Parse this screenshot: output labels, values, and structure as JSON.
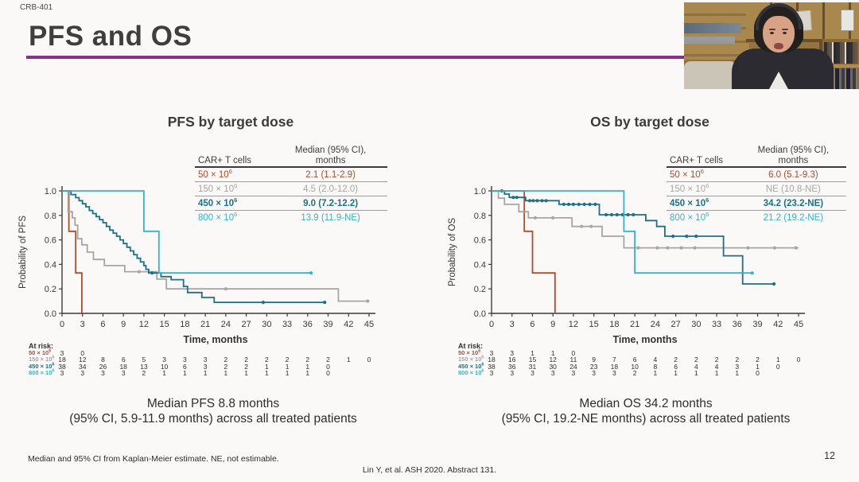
{
  "slide": {
    "eyebrow": "CRB-401",
    "title": "PFS and OS",
    "accent_color": "#8b2f8b",
    "footnote": "Median and 95% CI from Kaplan-Meier estimate. NE, not estimable.",
    "citation": "Lin Y, et al. ASH 2020. Abstract 131.",
    "page_number": "12"
  },
  "chart_data": [
    {
      "id": "pfs",
      "type": "line",
      "subtype": "kaplan-meier-step",
      "title": "PFS by target dose",
      "xlabel": "Time, months",
      "ylabel": "Probability of PFS",
      "xlim": [
        0,
        45
      ],
      "ylim": [
        0.0,
        1.0
      ],
      "xticks": [
        0,
        3,
        6,
        9,
        12,
        15,
        18,
        21,
        24,
        27,
        30,
        33,
        36,
        39,
        42,
        45
      ],
      "yticks": [
        0.0,
        0.2,
        0.4,
        0.6,
        0.8,
        1.0
      ],
      "grid": false,
      "legend_position": "top-right-table",
      "legend_headers": {
        "col1": "CAR+ T cells",
        "col2_line1": "Median (95% CI),",
        "col2_line2": "months"
      },
      "summary": {
        "line1": "Median PFS 8.8 months",
        "line2": "(95% CI, 5.9-11.9 months) across all treated patients"
      },
      "at_risk_label": "At risk:",
      "series": [
        {
          "id": "dose-50",
          "name": "50 × 10⁶",
          "dose_base": "50 × 10",
          "dose_exp": "6",
          "color": "#b04b2b",
          "bold": false,
          "median_ci": "2.1 (1.1-2.9)",
          "steps": [
            [
              0,
              1
            ],
            [
              1,
              1
            ],
            [
              1,
              0.67
            ],
            [
              2,
              0.67
            ],
            [
              2,
              0.33
            ],
            [
              2.9,
              0.33
            ],
            [
              2.9,
              0
            ]
          ],
          "censors": [],
          "at_risk_counts": [
            3,
            0
          ]
        },
        {
          "id": "dose-150",
          "name": "150 × 10⁶",
          "dose_base": "150 × 10",
          "dose_exp": "6",
          "color": "#a6a6a6",
          "bold": false,
          "median_ci": "4.5 (2.0-12.0)",
          "steps": [
            [
              0,
              1
            ],
            [
              0.9,
              1
            ],
            [
              0.9,
              0.83
            ],
            [
              1.5,
              0.83
            ],
            [
              1.5,
              0.78
            ],
            [
              1.9,
              0.78
            ],
            [
              1.9,
              0.72
            ],
            [
              2.3,
              0.72
            ],
            [
              2.3,
              0.61
            ],
            [
              2.9,
              0.61
            ],
            [
              2.9,
              0.56
            ],
            [
              3.7,
              0.56
            ],
            [
              3.7,
              0.5
            ],
            [
              4.6,
              0.5
            ],
            [
              4.6,
              0.44
            ],
            [
              6.2,
              0.44
            ],
            [
              6.2,
              0.39
            ],
            [
              9.2,
              0.39
            ],
            [
              9.2,
              0.34
            ],
            [
              13.9,
              0.34
            ],
            [
              13.9,
              0.28
            ],
            [
              15.3,
              0.28
            ],
            [
              15.3,
              0.2
            ],
            [
              40.5,
              0.2
            ],
            [
              40.5,
              0.1
            ],
            [
              44.8,
              0.1
            ]
          ],
          "censors": [
            [
              11.3,
              0.34
            ],
            [
              24,
              0.2
            ],
            [
              44.8,
              0.1
            ]
          ],
          "at_risk_counts": [
            18,
            12,
            8,
            6,
            5,
            3,
            3,
            3,
            2,
            2,
            2,
            2,
            2,
            2,
            1,
            0
          ]
        },
        {
          "id": "dose-450",
          "name": "450 × 10⁶",
          "dose_base": "450 × 10",
          "dose_exp": "6",
          "color": "#1d7089",
          "bold": true,
          "median_ci": "9.0 (7.2-12.2)",
          "steps": [
            [
              0,
              1
            ],
            [
              1.3,
              1
            ],
            [
              1.3,
              0.97
            ],
            [
              2,
              0.97
            ],
            [
              2,
              0.945
            ],
            [
              2.5,
              0.945
            ],
            [
              2.5,
              0.92
            ],
            [
              3,
              0.92
            ],
            [
              3,
              0.895
            ],
            [
              3.5,
              0.895
            ],
            [
              3.5,
              0.87
            ],
            [
              4,
              0.87
            ],
            [
              4,
              0.84
            ],
            [
              4.5,
              0.84
            ],
            [
              4.5,
              0.815
            ],
            [
              5,
              0.815
            ],
            [
              5,
              0.79
            ],
            [
              5.5,
              0.79
            ],
            [
              5.5,
              0.765
            ],
            [
              6,
              0.765
            ],
            [
              6,
              0.74
            ],
            [
              6.5,
              0.74
            ],
            [
              6.5,
              0.71
            ],
            [
              7,
              0.71
            ],
            [
              7,
              0.68
            ],
            [
              7.5,
              0.68
            ],
            [
              7.5,
              0.655
            ],
            [
              8,
              0.655
            ],
            [
              8,
              0.63
            ],
            [
              8.5,
              0.63
            ],
            [
              8.5,
              0.6
            ],
            [
              9,
              0.6
            ],
            [
              9,
              0.57
            ],
            [
              9.5,
              0.57
            ],
            [
              9.5,
              0.54
            ],
            [
              10,
              0.54
            ],
            [
              10,
              0.51
            ],
            [
              10.5,
              0.51
            ],
            [
              10.5,
              0.48
            ],
            [
              11,
              0.48
            ],
            [
              11,
              0.45
            ],
            [
              11.5,
              0.45
            ],
            [
              11.5,
              0.42
            ],
            [
              12,
              0.42
            ],
            [
              12,
              0.39
            ],
            [
              12.3,
              0.39
            ],
            [
              12.3,
              0.36
            ],
            [
              12.7,
              0.36
            ],
            [
              12.7,
              0.33
            ],
            [
              14.5,
              0.33
            ],
            [
              14.5,
              0.3
            ],
            [
              16,
              0.3
            ],
            [
              16,
              0.275
            ],
            [
              17.8,
              0.275
            ],
            [
              17.8,
              0.22
            ],
            [
              18.4,
              0.22
            ],
            [
              18.4,
              0.17
            ],
            [
              20.5,
              0.17
            ],
            [
              20.5,
              0.13
            ],
            [
              22.3,
              0.13
            ],
            [
              22.3,
              0.09
            ],
            [
              38.5,
              0.09
            ]
          ],
          "censors": [
            [
              13.2,
              0.33
            ],
            [
              29.5,
              0.09
            ],
            [
              38.5,
              0.09
            ]
          ],
          "at_risk_counts": [
            38,
            34,
            26,
            18,
            13,
            10,
            6,
            3,
            2,
            2,
            1,
            1,
            1,
            0
          ]
        },
        {
          "id": "dose-800",
          "name": "800 × 10⁶",
          "dose_base": "800 × 10",
          "dose_exp": "6",
          "color": "#36b3ca",
          "bold": false,
          "median_ci": "13.9 (11.9-NE)",
          "steps": [
            [
              0,
              1
            ],
            [
              12,
              1
            ],
            [
              12,
              0.67
            ],
            [
              14.2,
              0.67
            ],
            [
              14.2,
              0.33
            ],
            [
              36.5,
              0.33
            ]
          ],
          "censors": [
            [
              36.5,
              0.33
            ]
          ],
          "at_risk_counts": [
            3,
            3,
            3,
            3,
            2,
            1,
            1,
            1,
            1,
            1,
            1,
            1,
            1,
            0
          ]
        }
      ]
    },
    {
      "id": "os",
      "type": "line",
      "subtype": "kaplan-meier-step",
      "title": "OS by target dose",
      "xlabel": "Time, months",
      "ylabel": "Probability of OS",
      "xlim": [
        0,
        45
      ],
      "ylim": [
        0.0,
        1.0
      ],
      "xticks": [
        0,
        3,
        6,
        9,
        12,
        15,
        18,
        21,
        24,
        27,
        30,
        33,
        36,
        39,
        42,
        45
      ],
      "yticks": [
        0.0,
        0.2,
        0.4,
        0.6,
        0.8,
        1.0
      ],
      "grid": false,
      "legend_position": "top-right-table",
      "legend_headers": {
        "col1": "CAR+ T cells",
        "col2_line1": "Median (95% CI),",
        "col2_line2": "months"
      },
      "summary": {
        "line1": "Median OS 34.2 months",
        "line2": "(95% CI, 19.2-NE months) across all treated patients"
      },
      "at_risk_label": "At risk:",
      "series": [
        {
          "id": "dose-50",
          "name": "50 × 10⁶",
          "dose_base": "50 × 10",
          "dose_exp": "6",
          "color": "#b04b2b",
          "bold": false,
          "median_ci": "6.0 (5.1-9.3)",
          "steps": [
            [
              0,
              1
            ],
            [
              4.8,
              1
            ],
            [
              4.8,
              0.67
            ],
            [
              6,
              0.67
            ],
            [
              6,
              0.33
            ],
            [
              9.3,
              0.33
            ],
            [
              9.3,
              0
            ]
          ],
          "censors": [],
          "at_risk_counts": [
            3,
            3,
            1,
            1,
            0
          ]
        },
        {
          "id": "dose-150",
          "name": "150 × 10⁶",
          "dose_base": "150 × 10",
          "dose_exp": "6",
          "color": "#a6a6a6",
          "bold": false,
          "median_ci": "NE (10.8-NE)",
          "steps": [
            [
              0,
              1
            ],
            [
              1,
              1
            ],
            [
              1,
              0.94
            ],
            [
              1.9,
              0.94
            ],
            [
              1.9,
              0.89
            ],
            [
              4,
              0.89
            ],
            [
              4,
              0.83
            ],
            [
              5.4,
              0.83
            ],
            [
              5.4,
              0.78
            ],
            [
              11.8,
              0.78
            ],
            [
              11.8,
              0.71
            ],
            [
              16.2,
              0.71
            ],
            [
              16.2,
              0.63
            ],
            [
              19.4,
              0.63
            ],
            [
              19.4,
              0.535
            ],
            [
              45,
              0.535
            ]
          ],
          "censors": [
            [
              6.4,
              0.78
            ],
            [
              9,
              0.78
            ],
            [
              13.2,
              0.71
            ],
            [
              14.6,
              0.71
            ],
            [
              21.5,
              0.535
            ],
            [
              24.3,
              0.535
            ],
            [
              25.8,
              0.535
            ],
            [
              27.8,
              0.535
            ],
            [
              29.8,
              0.535
            ],
            [
              37.6,
              0.535
            ],
            [
              41.5,
              0.535
            ],
            [
              44.6,
              0.535
            ]
          ],
          "at_risk_counts": [
            18,
            16,
            15,
            12,
            11,
            9,
            7,
            6,
            4,
            2,
            2,
            2,
            2,
            2,
            1,
            0
          ]
        },
        {
          "id": "dose-450",
          "name": "450 × 10⁶",
          "dose_base": "450 × 10",
          "dose_exp": "6",
          "color": "#1d7089",
          "bold": true,
          "median_ci": "34.2 (23.2-NE)",
          "steps": [
            [
              0,
              1
            ],
            [
              1.9,
              1
            ],
            [
              1.9,
              0.974
            ],
            [
              2.6,
              0.974
            ],
            [
              2.6,
              0.947
            ],
            [
              5,
              0.947
            ],
            [
              5,
              0.92
            ],
            [
              9.9,
              0.92
            ],
            [
              9.9,
              0.89
            ],
            [
              15.8,
              0.89
            ],
            [
              15.8,
              0.805
            ],
            [
              22.6,
              0.805
            ],
            [
              22.6,
              0.758
            ],
            [
              24.2,
              0.758
            ],
            [
              24.2,
              0.71
            ],
            [
              25.4,
              0.71
            ],
            [
              25.4,
              0.63
            ],
            [
              34,
              0.63
            ],
            [
              34,
              0.47
            ],
            [
              36.8,
              0.47
            ],
            [
              36.8,
              0.24
            ],
            [
              41.5,
              0.24
            ]
          ],
          "censors": [
            [
              1.5,
              1
            ],
            [
              3.2,
              0.947
            ],
            [
              3.7,
              0.947
            ],
            [
              5.6,
              0.92
            ],
            [
              6.1,
              0.92
            ],
            [
              6.7,
              0.92
            ],
            [
              7.4,
              0.92
            ],
            [
              8,
              0.92
            ],
            [
              10.6,
              0.89
            ],
            [
              11.3,
              0.89
            ],
            [
              12,
              0.89
            ],
            [
              12.8,
              0.89
            ],
            [
              13.6,
              0.89
            ],
            [
              14.4,
              0.89
            ],
            [
              15.2,
              0.89
            ],
            [
              16.8,
              0.805
            ],
            [
              17.6,
              0.805
            ],
            [
              18.4,
              0.805
            ],
            [
              19.2,
              0.805
            ],
            [
              20,
              0.805
            ],
            [
              20.8,
              0.805
            ],
            [
              26.6,
              0.63
            ],
            [
              28.6,
              0.63
            ],
            [
              30,
              0.63
            ],
            [
              41.4,
              0.24
            ]
          ],
          "at_risk_counts": [
            38,
            36,
            31,
            30,
            24,
            23,
            18,
            10,
            8,
            6,
            4,
            4,
            3,
            1,
            0
          ]
        },
        {
          "id": "dose-800",
          "name": "800 × 10⁶",
          "dose_base": "800 × 10",
          "dose_exp": "6",
          "color": "#36b3ca",
          "bold": false,
          "median_ci": "21.2 (19.2-NE)",
          "steps": [
            [
              0,
              1
            ],
            [
              19.4,
              1
            ],
            [
              19.4,
              0.67
            ],
            [
              21,
              0.67
            ],
            [
              21,
              0.33
            ],
            [
              38.2,
              0.33
            ]
          ],
          "censors": [
            [
              38.2,
              0.33
            ]
          ],
          "at_risk_counts": [
            3,
            3,
            3,
            3,
            3,
            3,
            3,
            2,
            1,
            1,
            1,
            1,
            1,
            0
          ]
        }
      ]
    }
  ]
}
